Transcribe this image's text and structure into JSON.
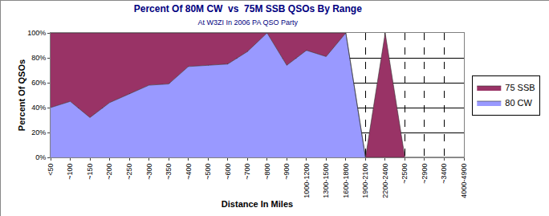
{
  "chart_data": {
    "type": "area",
    "title": "Percent Of 80M CW  vs  75M SSB QSOs By Range",
    "subtitle": "At W3ZI In 2006 PA QSO Party",
    "x_label": "Distance In Miles",
    "y_label": "Percent Of QSOs",
    "categories": [
      "<50",
      "~100",
      "~150",
      "~200",
      "~250",
      "~300",
      "~350",
      "~400",
      "~500",
      "~600",
      "~700",
      "~800",
      "~900",
      "1000-1200",
      "1300-1500",
      "1600-1800",
      "1900-2100",
      "2200-2400",
      "~2500",
      "~2900",
      "~3400",
      "4000-4900"
    ],
    "series": [
      {
        "name": "80 CW",
        "color": "#9999ff",
        "values": [
          40,
          45,
          32,
          44,
          51,
          58,
          59,
          73,
          74,
          75,
          85,
          100,
          74,
          86,
          81,
          100,
          0,
          0,
          0,
          null,
          null,
          null
        ]
      },
      {
        "name": "75 SSB",
        "color": "#993366",
        "values": [
          60,
          55,
          68,
          56,
          49,
          42,
          41,
          27,
          26,
          25,
          15,
          0,
          26,
          14,
          19,
          0,
          0,
          100,
          0,
          null,
          null,
          null
        ]
      }
    ],
    "stacked": true,
    "ylim": [
      0,
      100
    ],
    "yticks": [
      {
        "value": 0,
        "label": "0%"
      },
      {
        "value": 20,
        "label": "20%"
      },
      {
        "value": 40,
        "label": "40%"
      },
      {
        "value": 60,
        "label": "60%"
      },
      {
        "value": 80,
        "label": "80%"
      },
      {
        "value": 100,
        "label": "100%"
      }
    ],
    "grid": true,
    "legend": "right"
  }
}
